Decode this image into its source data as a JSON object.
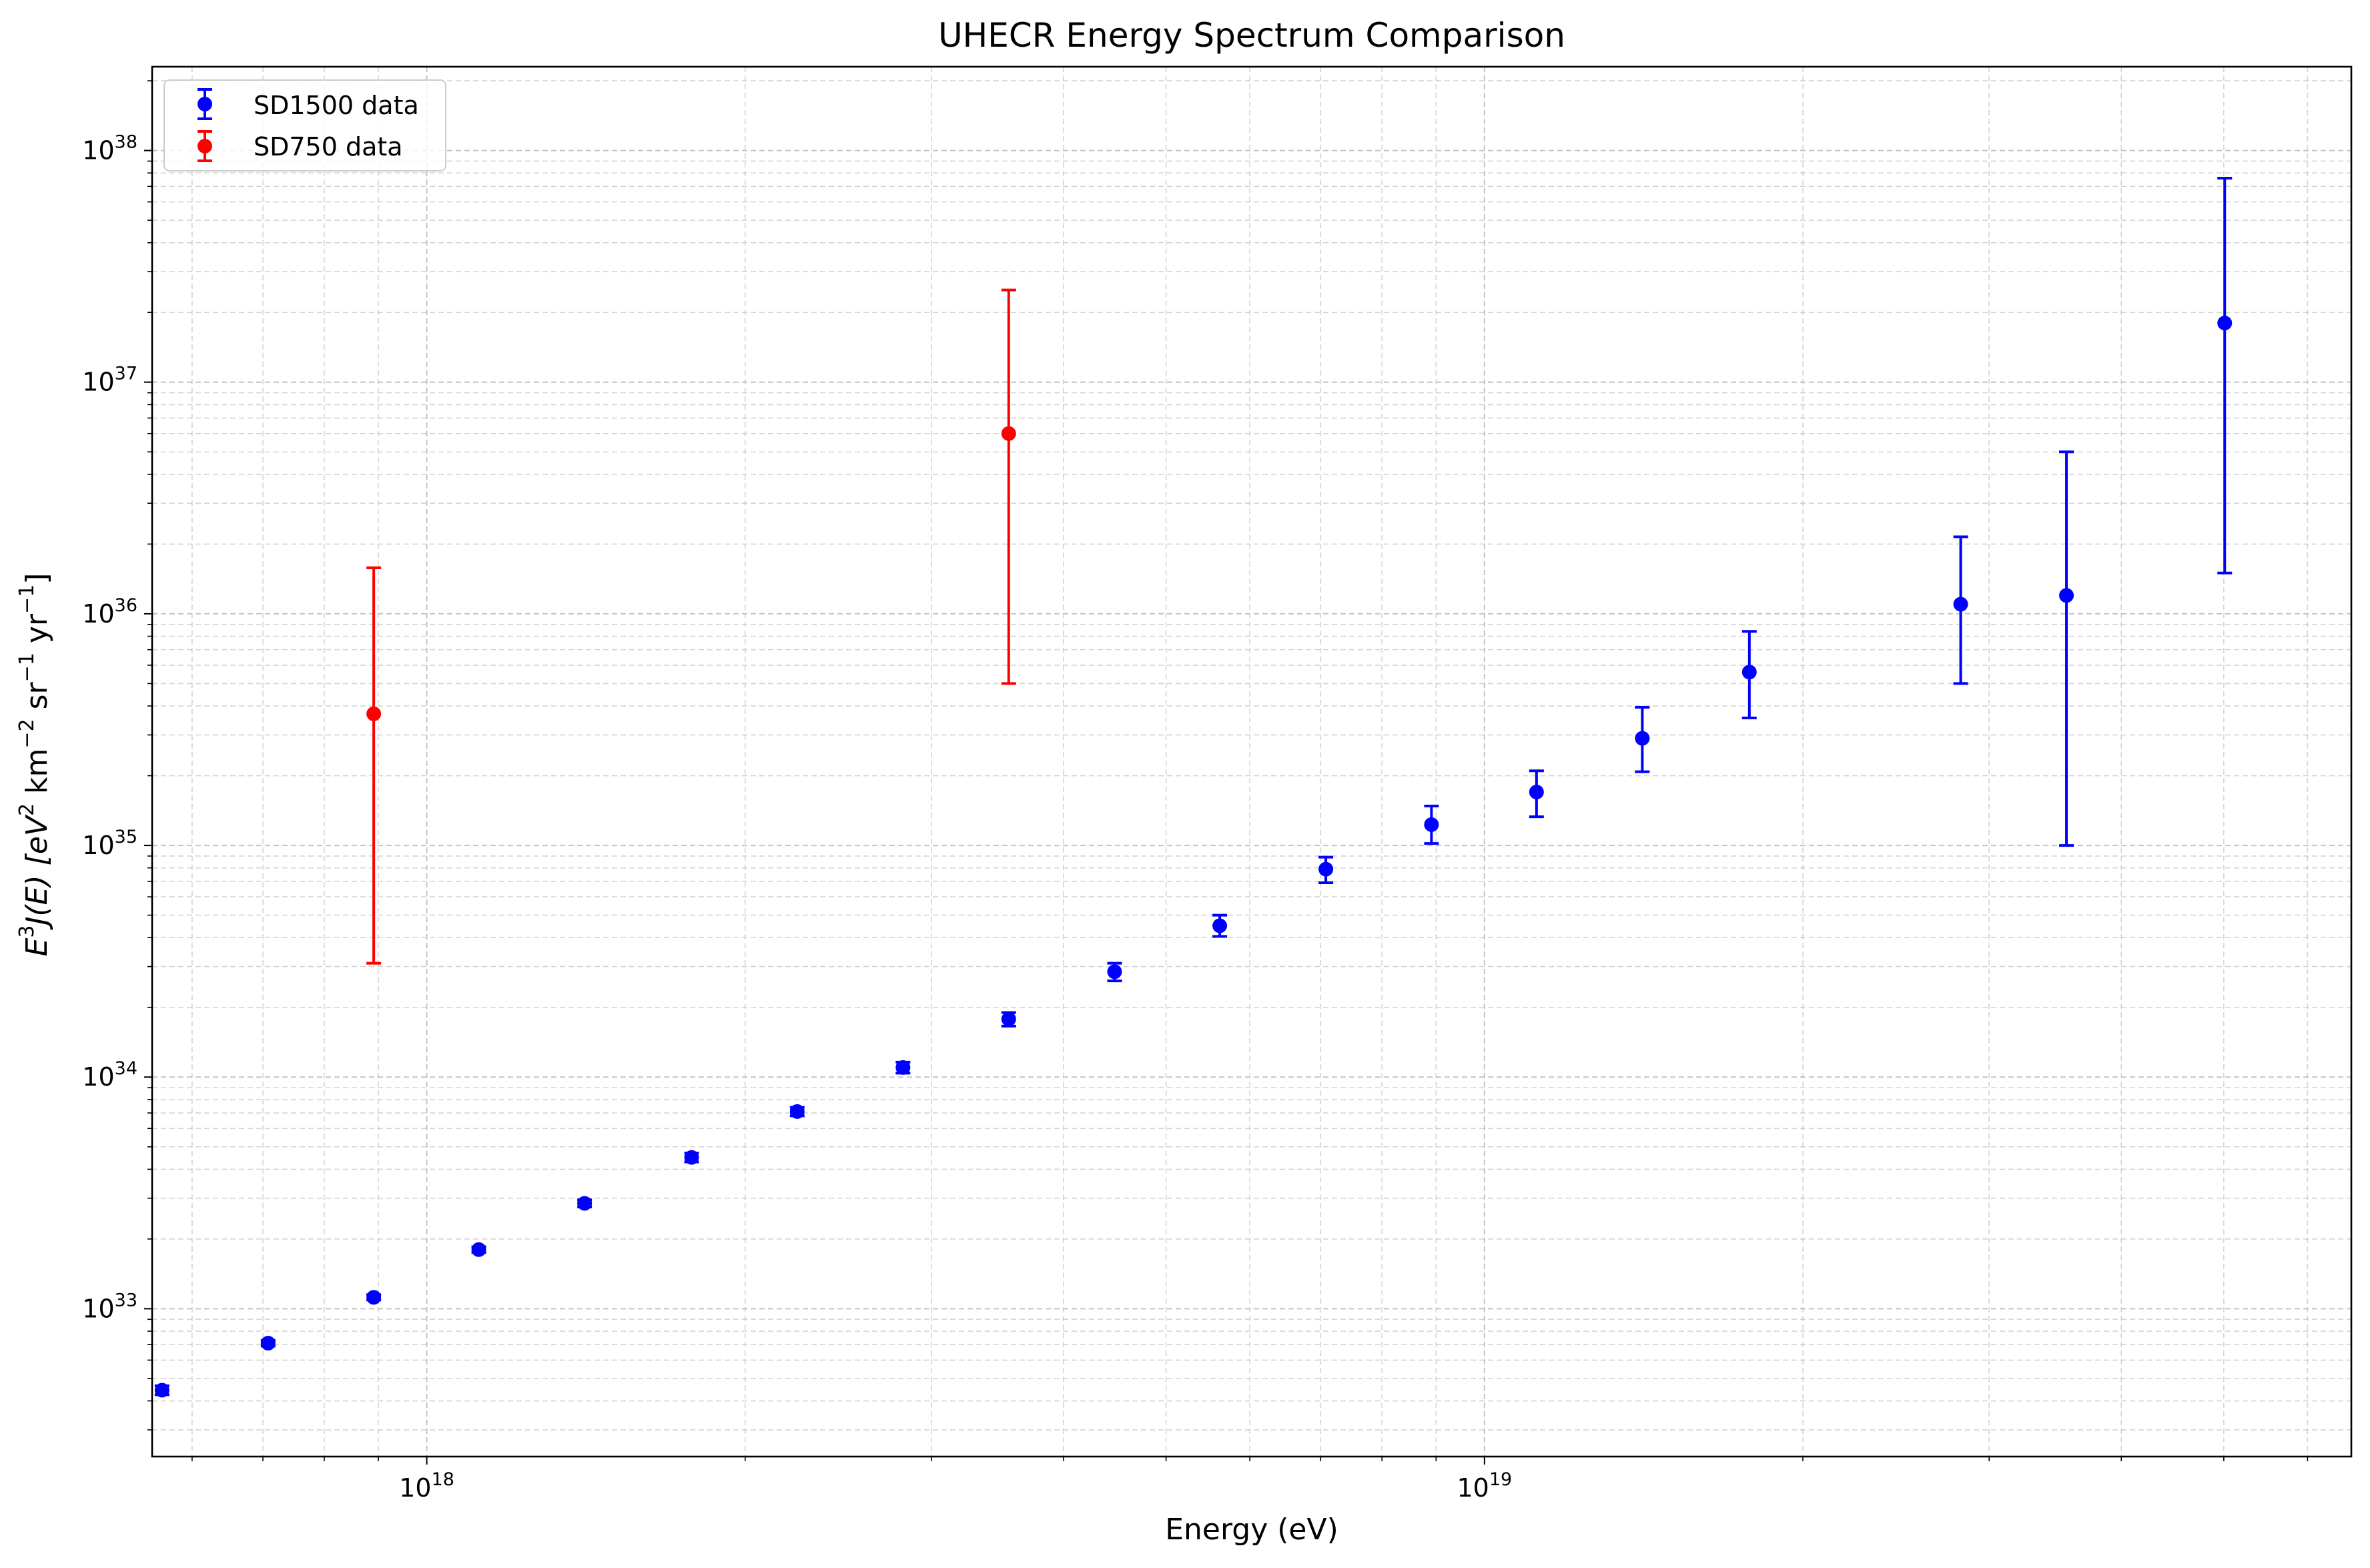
{
  "chart_data": {
    "type": "scatter",
    "title": "UHECR Energy Spectrum Comparison",
    "xlabel": "Energy (eV)",
    "ylabel": {
      "prefix": "E",
      "prefix_sup": "3",
      "func": "J(E) [eV",
      "eV_sup": "2",
      "km": " km",
      "km_sup": "−2",
      "sr": " sr",
      "sr_sup": "−1",
      "yr": " yr",
      "yr_sup": "−1",
      "close": "]"
    },
    "x_scale": "log",
    "y_scale": "log",
    "xlim": [
      5.5e+17,
      6.6e+19
    ],
    "ylim": [
      2.3e+32,
      2.3e+38
    ],
    "grid": true,
    "legend_position": "top-left",
    "x_ticks": [
      {
        "value": 1e+18,
        "base": "10",
        "exp": "18"
      },
      {
        "value": 1e+19,
        "base": "10",
        "exp": "19"
      }
    ],
    "y_ticks": [
      {
        "value": 1e+33,
        "base": "10",
        "exp": "33"
      },
      {
        "value": 1e+34,
        "base": "10",
        "exp": "34"
      },
      {
        "value": 1e+35,
        "base": "10",
        "exp": "35"
      },
      {
        "value": 1e+36,
        "base": "10",
        "exp": "36"
      },
      {
        "value": 1e+37,
        "base": "10",
        "exp": "37"
      },
      {
        "value": 1e+38,
        "base": "10",
        "exp": "38"
      }
    ],
    "series": [
      {
        "name": "SD1500 data",
        "color": "#0000ff",
        "points": [
          {
            "x": 5.62e+17,
            "y": 4.45e+32,
            "ylo": 4.25e+32,
            "yhi": 4.65e+32
          },
          {
            "x": 7.08e+17,
            "y": 7.1e+32,
            "ylo": 6.9e+32,
            "yhi": 7.3e+32
          },
          {
            "x": 8.91e+17,
            "y": 1.12e+33,
            "ylo": 1.09e+33,
            "yhi": 1.15e+33
          },
          {
            "x": 1.12e+18,
            "y": 1.8e+33,
            "ylo": 1.75e+33,
            "yhi": 1.85e+33
          },
          {
            "x": 1.41e+18,
            "y": 2.85e+33,
            "ylo": 2.75e+33,
            "yhi": 2.95e+33
          },
          {
            "x": 1.78e+18,
            "y": 4.5e+33,
            "ylo": 4.3e+33,
            "yhi": 4.7e+33
          },
          {
            "x": 2.24e+18,
            "y": 7.1e+33,
            "ylo": 6.8e+33,
            "yhi": 7.4e+33
          },
          {
            "x": 2.82e+18,
            "y": 1.1e+34,
            "ylo": 1.04e+34,
            "yhi": 1.16e+34
          },
          {
            "x": 3.55e+18,
            "y": 1.78e+34,
            "ylo": 1.66e+34,
            "yhi": 1.9e+34
          },
          {
            "x": 4.47e+18,
            "y": 2.85e+34,
            "ylo": 2.6e+34,
            "yhi": 3.1e+34
          },
          {
            "x": 5.62e+18,
            "y": 4.5e+34,
            "ylo": 4.05e+34,
            "yhi": 5e+34
          },
          {
            "x": 7.08e+18,
            "y": 7.9e+34,
            "ylo": 6.9e+34,
            "yhi": 8.9e+34
          },
          {
            "x": 8.91e+18,
            "y": 1.23e+35,
            "ylo": 1.02e+35,
            "yhi": 1.48e+35
          },
          {
            "x": 1.12e+19,
            "y": 1.7e+35,
            "ylo": 1.33e+35,
            "yhi": 2.1e+35
          },
          {
            "x": 1.41e+19,
            "y": 2.9e+35,
            "ylo": 2.08e+35,
            "yhi": 3.95e+35
          },
          {
            "x": 1.78e+19,
            "y": 5.6e+35,
            "ylo": 3.55e+35,
            "yhi": 8.4e+35
          },
          {
            "x": 2.82e+19,
            "y": 1.1e+36,
            "ylo": 5e+35,
            "yhi": 2.15e+36
          },
          {
            "x": 3.55e+19,
            "y": 1.2e+36,
            "ylo": 1e+35,
            "yhi": 5e+36
          },
          {
            "x": 5.01e+19,
            "y": 1.8e+37,
            "ylo": 1.5e+36,
            "yhi": 7.6e+37
          }
        ]
      },
      {
        "name": "SD750 data",
        "color": "#ff0000",
        "points": [
          {
            "x": 8.91e+17,
            "y": 3.7e+35,
            "ylo": 3.1e+34,
            "yhi": 1.58e+36
          },
          {
            "x": 3.55e+18,
            "y": 6e+36,
            "ylo": 5e+35,
            "yhi": 2.5e+37
          }
        ]
      }
    ]
  }
}
